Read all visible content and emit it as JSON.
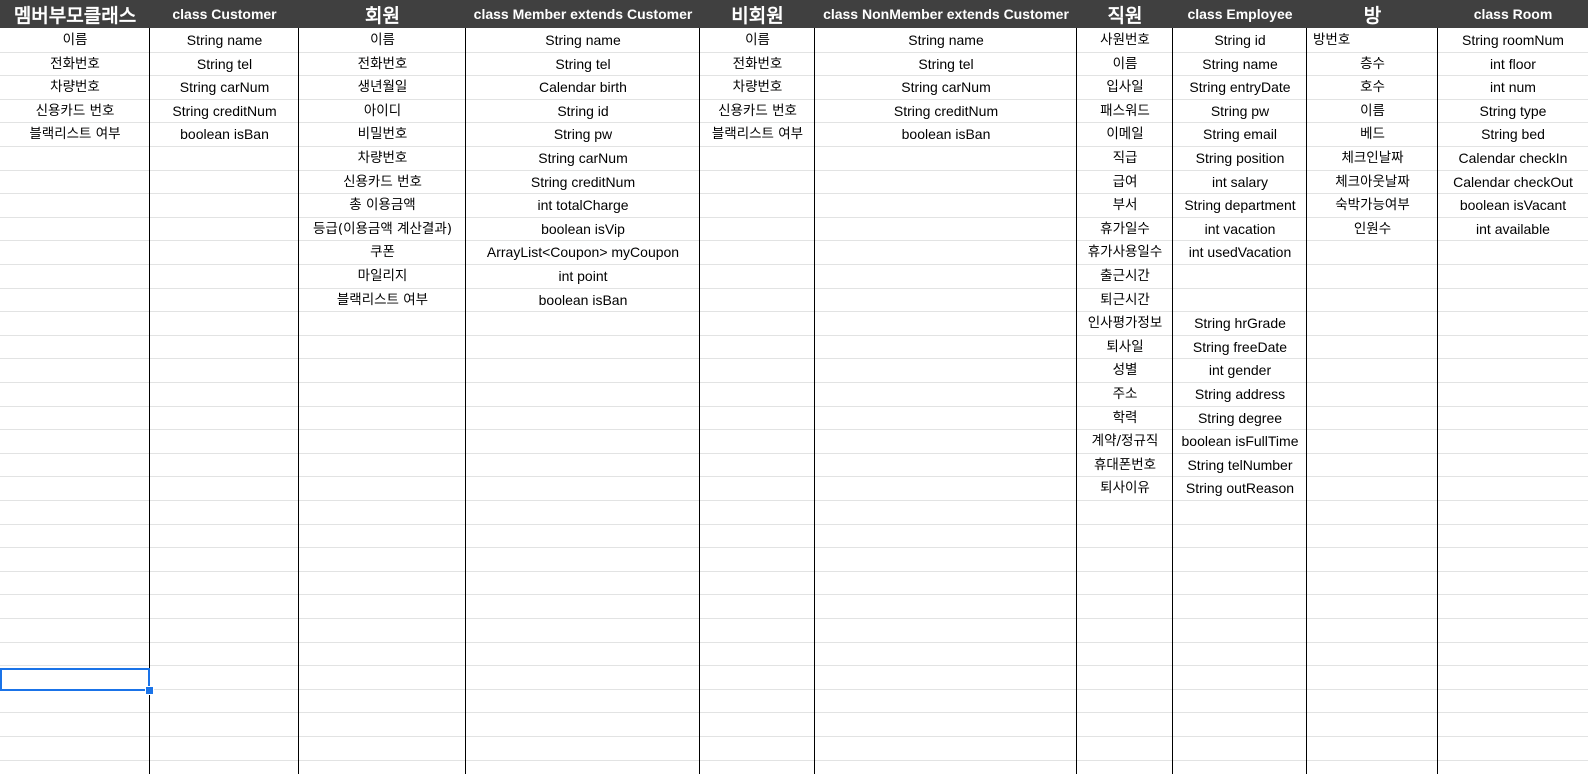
{
  "columns": [
    {
      "key": "A",
      "header": "멤버부모클래스",
      "lang": "kr",
      "items": [
        "이름",
        "전화번호",
        "차량번호",
        "신용카드 번호",
        "블랙리스트 여부"
      ]
    },
    {
      "key": "B",
      "header": "class Customer",
      "lang": "en",
      "items": [
        "String name",
        "String tel",
        "String carNum",
        "String creditNum",
        "boolean isBan"
      ]
    },
    {
      "key": "C",
      "header": "회원",
      "lang": "kr",
      "items": [
        "이름",
        "전화번호",
        "생년월일",
        "아이디",
        "비밀번호",
        "차량번호",
        "신용카드 번호",
        "총 이용금액",
        "등급(이용금액 계산결과)",
        "쿠폰",
        "마일리지",
        "블랙리스트 여부"
      ]
    },
    {
      "key": "D",
      "header": "class Member extends Customer",
      "lang": "en",
      "items": [
        "String name",
        "String tel",
        "Calendar birth",
        "String id",
        "String pw",
        "String carNum",
        "String creditNum",
        "int totalCharge",
        "boolean isVip",
        "ArrayList<Coupon> myCoupon",
        "int point",
        "boolean isBan"
      ]
    },
    {
      "key": "E",
      "header": "비회원",
      "lang": "kr",
      "items": [
        "이름",
        "전화번호",
        "차량번호",
        "신용카드 번호",
        "블랙리스트 여부"
      ]
    },
    {
      "key": "F",
      "header": "class NonMember extends Customer",
      "lang": "en",
      "items": [
        "String name",
        "String tel",
        "String carNum",
        "String creditNum",
        "boolean isBan"
      ]
    },
    {
      "key": "G",
      "header": "직원",
      "lang": "kr",
      "items": [
        "사원번호",
        "이름",
        "입사일",
        "패스워드",
        "이메일",
        "직급",
        "급여",
        "부서",
        "휴가일수",
        "휴가사용일수",
        "출근시간",
        "퇴근시간",
        "인사평가정보",
        "퇴사일",
        "성별",
        "주소",
        "학력",
        "계약/정규직",
        "휴대폰번호",
        "퇴사이유"
      ]
    },
    {
      "key": "H",
      "header": "class Employee",
      "lang": "en",
      "items": [
        "String id",
        "String name",
        "String entryDate",
        "String pw",
        "String email",
        "String position",
        "int salary",
        "String department",
        "int vacation",
        "int usedVacation",
        "",
        "",
        "String hrGrade",
        "String freeDate",
        "int gender",
        "String address",
        "String degree",
        "boolean isFullTime",
        "String telNumber",
        "String outReason"
      ]
    },
    {
      "key": "I",
      "header": "방",
      "lang": "kr",
      "items": [
        "방번호",
        "층수",
        "호수",
        "이름",
        "베드",
        "체크인날짜",
        "체크아웃날짜",
        "숙박가능여부",
        "인원수"
      ]
    },
    {
      "key": "J",
      "header": "class Room",
      "lang": "en",
      "items": [
        "String roomNum",
        "int floor",
        "int num",
        "String type",
        "String bed",
        "Calendar checkIn",
        "Calendar checkOut",
        "boolean isVacant",
        "int available"
      ]
    }
  ]
}
